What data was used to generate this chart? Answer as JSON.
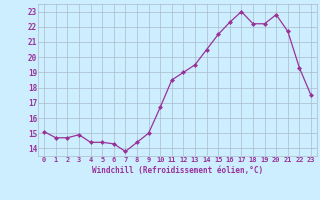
{
  "x": [
    0,
    1,
    2,
    3,
    4,
    5,
    6,
    7,
    8,
    9,
    10,
    11,
    12,
    13,
    14,
    15,
    16,
    17,
    18,
    19,
    20,
    21,
    22,
    23
  ],
  "y": [
    15.1,
    14.7,
    14.7,
    14.9,
    14.4,
    14.4,
    14.3,
    13.8,
    14.4,
    15.0,
    16.7,
    18.5,
    19.0,
    19.5,
    20.5,
    21.5,
    22.3,
    23.0,
    22.2,
    22.2,
    22.8,
    21.7,
    19.3,
    17.5
  ],
  "line_color": "#993399",
  "marker": "D",
  "marker_size": 2.0,
  "bg_color": "#cceeff",
  "grid_color": "#aabbcc",
  "xlabel": "Windchill (Refroidissement éolien,°C)",
  "tick_color": "#993399",
  "xlim": [
    -0.5,
    23.5
  ],
  "ylim": [
    13.5,
    23.5
  ],
  "yticks": [
    14,
    15,
    16,
    17,
    18,
    19,
    20,
    21,
    22,
    23
  ],
  "xtick_labels": [
    "0",
    "1",
    "2",
    "3",
    "4",
    "5",
    "6",
    "7",
    "8",
    "9",
    "10",
    "11",
    "12",
    "13",
    "14",
    "15",
    "16",
    "17",
    "18",
    "19",
    "20",
    "21",
    "22",
    "23"
  ]
}
